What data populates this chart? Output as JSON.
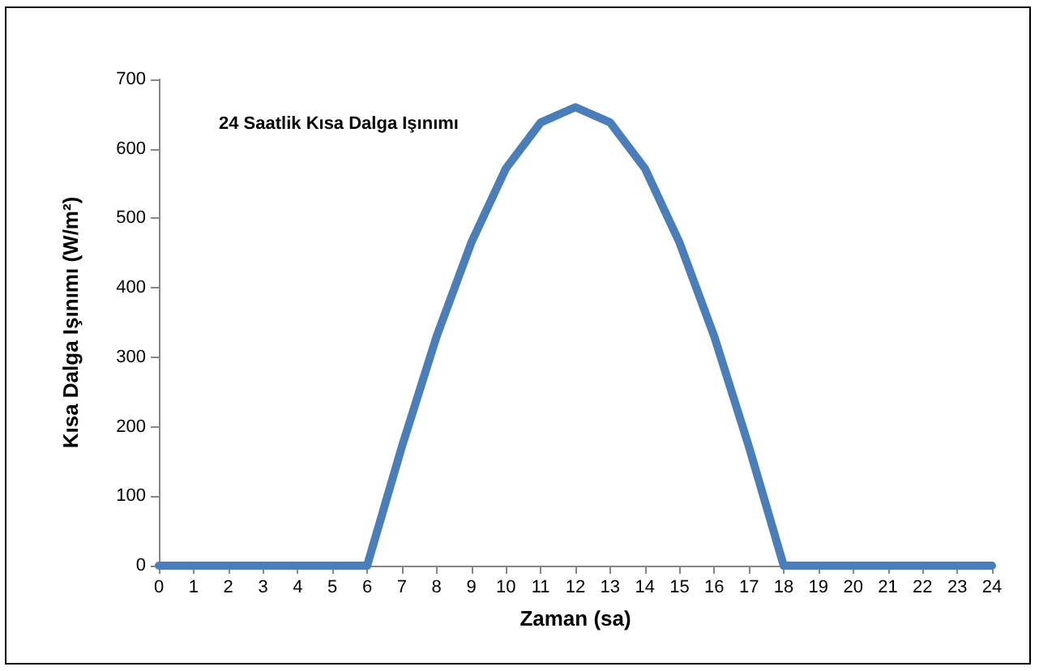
{
  "chart_data": {
    "type": "line",
    "title": "24 Saatlik Kısa Dalga Işınımı",
    "xlabel": "Zaman (sa)",
    "ylabel": "Kısa Dalga Işınımı (W/m²)",
    "x": [
      0,
      1,
      2,
      3,
      4,
      5,
      6,
      7,
      8,
      9,
      10,
      11,
      12,
      13,
      14,
      15,
      16,
      17,
      18,
      19,
      20,
      21,
      22,
      23,
      24
    ],
    "series": [
      {
        "color": "#4a7ebb",
        "values": [
          0,
          0,
          0,
          0,
          0,
          0,
          0,
          171,
          330,
          465,
          572,
          638,
          660,
          638,
          572,
          465,
          330,
          171,
          0,
          0,
          0,
          0,
          0,
          0,
          0
        ]
      }
    ],
    "xlim": [
      0,
      24
    ],
    "xticks": [
      0,
      1,
      2,
      3,
      4,
      5,
      6,
      7,
      8,
      9,
      10,
      11,
      12,
      13,
      14,
      15,
      16,
      17,
      18,
      19,
      20,
      21,
      22,
      23,
      24
    ],
    "ylim": [
      0,
      700
    ],
    "yticks": [
      0,
      100,
      200,
      300,
      400,
      500,
      600,
      700
    ],
    "grid": false,
    "marker": "none",
    "line_style": "solid"
  }
}
